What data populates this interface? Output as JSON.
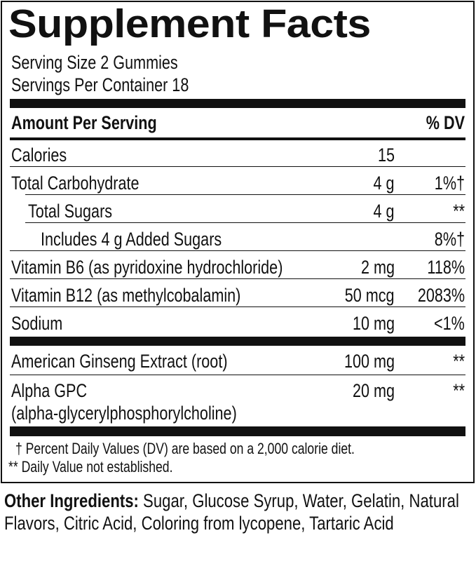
{
  "title": "Supplement Facts",
  "serving_size": "Serving Size 2 Gummies",
  "servings_per_container": "Servings Per Container 18",
  "header": {
    "amount": "Amount Per Serving",
    "dv": "% DV"
  },
  "rows": [
    {
      "label": "Calories",
      "amount": "15",
      "dv": ""
    },
    {
      "label": "Total Carbohydrate",
      "amount": "4 g",
      "dv": "1%†"
    },
    {
      "label": "Total Sugars",
      "amount": "4 g",
      "dv": "**"
    },
    {
      "label": "Includes 4 g Added Sugars",
      "amount": "",
      "dv": "8%†"
    },
    {
      "label": "Vitamin B6 (as pyridoxine hydrochloride)",
      "amount": "2 mg",
      "dv": "118%"
    },
    {
      "label": "Vitamin B12 (as methylcobalamin)",
      "amount": "50 mcg",
      "dv": "2083%"
    },
    {
      "label": "Sodium",
      "amount": "10 mg",
      "dv": "<1%"
    }
  ],
  "blend": [
    {
      "label": "American Ginseng Extract (root)",
      "amount": "100 mg",
      "dv": "**"
    },
    {
      "label": "Alpha GPC",
      "label2": "(alpha-glycerylphosphorylcholine)",
      "amount": "20 mg",
      "dv": "**"
    }
  ],
  "footnotes": [
    "† Percent Daily Values (DV) are based on a 2,000 calorie diet.",
    "** Daily Value not established."
  ],
  "other_ingredients": {
    "label": "Other Ingredients:",
    "text": " Sugar, Glucose Syrup, Water, Gelatin, Natural Flavors, Citric Acid, Coloring from lycopene, Tartaric Acid"
  }
}
